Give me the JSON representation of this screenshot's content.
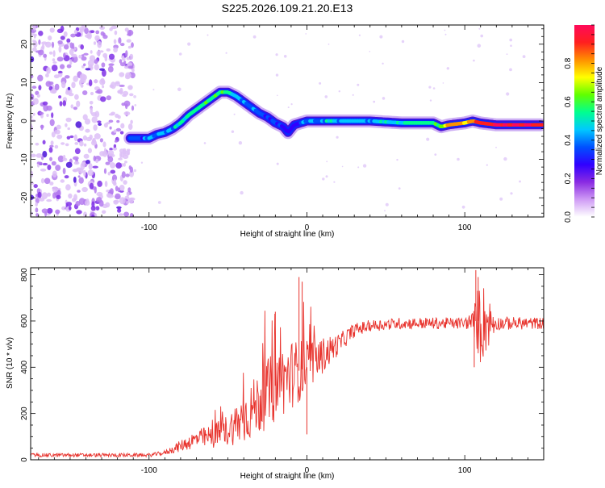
{
  "title": "S225.2026.109.21.20.E13",
  "chart_data": [
    {
      "type": "heatmap",
      "name": "spectrogram",
      "xlabel": "Height of straight line (km)",
      "ylabel": "Frequency (Hz)",
      "xlim": [
        -175,
        150
      ],
      "ylim": [
        -25,
        25
      ],
      "xticks": [
        -100,
        0,
        100
      ],
      "xtick_labels": [
        "-100",
        "0",
        "100"
      ],
      "yticks": [
        -20,
        -10,
        0,
        10,
        20
      ],
      "ytick_labels": [
        "-20",
        "-10",
        "0",
        "10",
        "20"
      ],
      "track": {
        "x": [
          -112,
          -105,
          -100,
          -95,
          -90,
          -85,
          -80,
          -75,
          -70,
          -65,
          -60,
          -55,
          -50,
          -45,
          -40,
          -35,
          -30,
          -25,
          -20,
          -15,
          -12,
          -8,
          -4,
          0,
          10,
          20,
          40,
          60,
          80,
          85,
          90,
          100,
          105,
          110,
          120,
          130,
          140,
          148
        ],
        "y": [
          -4.5,
          -4.5,
          -4.5,
          -3.5,
          -3,
          -2,
          -0.5,
          1.5,
          3,
          4.5,
          6,
          7.5,
          7.5,
          6.5,
          5,
          3.5,
          2,
          1,
          -0.5,
          -1.5,
          -3,
          -1,
          -0.5,
          0,
          0,
          0,
          0,
          -0.5,
          -0.5,
          -1.5,
          -1,
          -0.5,
          0,
          -0.5,
          -1,
          -1,
          -1,
          -1
        ],
        "amplitude": [
          0.4,
          0.35,
          0.45,
          0.4,
          0.45,
          0.45,
          0.5,
          0.55,
          0.55,
          0.55,
          0.55,
          0.6,
          0.5,
          0.45,
          0.4,
          0.4,
          0.35,
          0.35,
          0.3,
          0.3,
          0.25,
          0.3,
          0.35,
          0.4,
          0.45,
          0.45,
          0.45,
          0.5,
          0.55,
          0.6,
          0.85,
          0.8,
          0.85,
          0.9,
          0.95,
          0.95,
          0.95,
          0.9
        ]
      },
      "noise_region_x": [
        -175,
        -110
      ],
      "colorbar": {
        "label": "Normalized spectral amplitude",
        "range": [
          0.0,
          1.0
        ],
        "ticks": [
          0.0,
          0.2,
          0.4,
          0.6,
          0.8
        ],
        "tick_labels": [
          "0.0",
          "0.2",
          "0.4",
          "0.6",
          "0.8"
        ],
        "colors": [
          "#ffffff",
          "#cf9bf5",
          "#8a2be2",
          "#3000ff",
          "#0050ff",
          "#00c8ff",
          "#00ff90",
          "#60ff00",
          "#ffff00",
          "#ff9000",
          "#ff1f1f",
          "#ff0a5a"
        ]
      }
    },
    {
      "type": "line",
      "name": "snr",
      "xlabel": "Height of straight line (km)",
      "ylabel": "SNR (10 * v/v)",
      "xlim": [
        -175,
        150
      ],
      "ylim": [
        0,
        830
      ],
      "xticks": [
        -100,
        0,
        100
      ],
      "xtick_labels": [
        "-100",
        "0",
        "100"
      ],
      "yticks": [
        0,
        200,
        400,
        600,
        800
      ],
      "ytick_labels": [
        "0",
        "200",
        "400",
        "600",
        "800"
      ],
      "color": "#e8332d",
      "envelope": {
        "x": [
          -175,
          -100,
          -95,
          -90,
          -80,
          -70,
          -60,
          -50,
          -40,
          -30,
          -20,
          -10,
          0,
          10,
          20,
          30,
          40,
          60,
          80,
          100,
          105,
          110,
          120,
          150
        ],
        "mean": [
          20,
          20,
          25,
          30,
          60,
          90,
          100,
          130,
          180,
          250,
          320,
          370,
          400,
          450,
          500,
          560,
          580,
          590,
          590,
          590,
          600,
          600,
          590,
          590
        ],
        "amplitude": [
          8,
          8,
          8,
          10,
          25,
          40,
          50,
          70,
          110,
          140,
          160,
          150,
          120,
          80,
          45,
          30,
          25,
          25,
          25,
          25,
          40,
          200,
          30,
          25
        ]
      },
      "spikes": [
        {
          "x": 107,
          "y": 820
        },
        {
          "x": 108.5,
          "y": 790
        },
        {
          "x": 106,
          "y": 400
        },
        {
          "x": -5,
          "y": 790
        },
        {
          "x": -3,
          "y": 770
        },
        {
          "x": -20,
          "y": 640
        },
        {
          "x": 0,
          "y": 110
        }
      ]
    }
  ]
}
